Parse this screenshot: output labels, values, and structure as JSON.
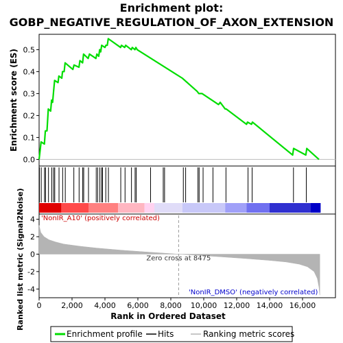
{
  "chart_data": {
    "type": "line",
    "title_lines": [
      "Enrichment plot:",
      "GOBP_NEGATIVE_REGULATION_OF_AXON_EXTENSION"
    ],
    "es_panel": {
      "ylabel": "Enrichment score (ES)",
      "ylim": [
        -0.03,
        0.57
      ],
      "yticks": [
        0.0,
        0.1,
        0.2,
        0.3,
        0.4,
        0.5
      ],
      "ytick_labels": [
        "0.0",
        "0.1",
        "0.2",
        "0.3",
        "0.4",
        "0.5"
      ],
      "line_color": "#00dd00",
      "points": [
        [
          0,
          0.0
        ],
        [
          120,
          0.08
        ],
        [
          320,
          0.07
        ],
        [
          380,
          0.13
        ],
        [
          480,
          0.13
        ],
        [
          560,
          0.23
        ],
        [
          700,
          0.22
        ],
        [
          760,
          0.27
        ],
        [
          820,
          0.26
        ],
        [
          880,
          0.31
        ],
        [
          940,
          0.36
        ],
        [
          1150,
          0.35
        ],
        [
          1200,
          0.38
        ],
        [
          1380,
          0.37
        ],
        [
          1420,
          0.4
        ],
        [
          1520,
          0.4
        ],
        [
          1580,
          0.44
        ],
        [
          2050,
          0.41
        ],
        [
          2120,
          0.43
        ],
        [
          2420,
          0.42
        ],
        [
          2480,
          0.45
        ],
        [
          2640,
          0.44
        ],
        [
          2700,
          0.48
        ],
        [
          2980,
          0.46
        ],
        [
          3060,
          0.48
        ],
        [
          3450,
          0.46
        ],
        [
          3510,
          0.48
        ],
        [
          3620,
          0.47
        ],
        [
          3680,
          0.5
        ],
        [
          3740,
          0.49
        ],
        [
          3800,
          0.52
        ],
        [
          4000,
          0.51
        ],
        [
          4060,
          0.52
        ],
        [
          4140,
          0.52
        ],
        [
          4200,
          0.55
        ],
        [
          4950,
          0.51
        ],
        [
          5000,
          0.52
        ],
        [
          5200,
          0.51
        ],
        [
          5260,
          0.52
        ],
        [
          5600,
          0.5
        ],
        [
          5660,
          0.51
        ],
        [
          5820,
          0.5
        ],
        [
          5880,
          0.51
        ],
        [
          5960,
          0.5
        ],
        [
          8700,
          0.37
        ],
        [
          9600,
          0.31
        ],
        [
          9700,
          0.3
        ],
        [
          9900,
          0.3
        ],
        [
          10900,
          0.25
        ],
        [
          11000,
          0.26
        ],
        [
          11300,
          0.23
        ],
        [
          11360,
          0.23
        ],
        [
          12600,
          0.16
        ],
        [
          12660,
          0.17
        ],
        [
          12900,
          0.16
        ],
        [
          12960,
          0.17
        ],
        [
          15400,
          0.02
        ],
        [
          15460,
          0.05
        ],
        [
          16200,
          0.02
        ],
        [
          16260,
          0.05
        ],
        [
          17000,
          0.0
        ]
      ]
    },
    "hits": [
      20,
      130,
      330,
      390,
      570,
      770,
      880,
      950,
      1210,
      1430,
      1590,
      2110,
      2430,
      2650,
      2710,
      3000,
      3470,
      3560,
      3690,
      3800,
      3850,
      4050,
      4210,
      4960,
      5220,
      5610,
      5830,
      5900,
      6770,
      7540,
      7620,
      8760,
      8900,
      9650,
      9720,
      9960,
      10560,
      11350,
      12690,
      12940,
      15450,
      16230
    ],
    "rank_panel": {
      "ylabel": "Ranked list metric (Signal2Noise)",
      "ylim": [
        -5.0,
        4.6
      ],
      "yticks": [
        4,
        2,
        0,
        -2,
        -4
      ],
      "ytick_labels": [
        "4",
        "2",
        "0",
        "-2",
        "-4"
      ],
      "fill_color": "#b4b4b4",
      "points": [
        [
          0,
          3.3
        ],
        [
          100,
          2.5
        ],
        [
          300,
          2.0
        ],
        [
          600,
          1.65
        ],
        [
          1000,
          1.4
        ],
        [
          1500,
          1.15
        ],
        [
          2500,
          0.9
        ],
        [
          3500,
          0.7
        ],
        [
          5000,
          0.45
        ],
        [
          6500,
          0.25
        ],
        [
          7500,
          0.12
        ],
        [
          8475,
          0.0
        ],
        [
          9500,
          -0.12
        ],
        [
          11000,
          -0.3
        ],
        [
          12500,
          -0.5
        ],
        [
          14000,
          -0.72
        ],
        [
          15000,
          -0.9
        ],
        [
          15800,
          -1.15
        ],
        [
          16300,
          -1.45
        ],
        [
          16700,
          -2.0
        ],
        [
          16900,
          -2.8
        ],
        [
          17000,
          -3.8
        ],
        [
          17050,
          -4.7
        ]
      ],
      "zero_cross": 8475,
      "zero_cross_label": "Zero cross at 8475",
      "pos_label": "'NonIR_A10' (positively correlated)",
      "neg_label": "'NonIR_DMSO' (negatively correlated)",
      "pos_label_color": "#cc0000",
      "neg_label_color": "#0000cc"
    },
    "heat_bar": {
      "colors": [
        "#e00000",
        "#ff4a4a",
        "#ff8080",
        "#ffb6c1",
        "#ffd2f0",
        "#e0dcf8",
        "#c8c8f8",
        "#a0a0f8",
        "#7070f0",
        "#3030d0",
        "#0000c8"
      ],
      "breaks": [
        0,
        1350,
        3000,
        4800,
        6400,
        7000,
        8700,
        11300,
        12600,
        14000,
        16500,
        17100
      ]
    },
    "xlabel": "Rank in Ordered Dataset",
    "xlim": [
      0,
      18000
    ],
    "xticks": [
      0,
      2000,
      4000,
      6000,
      8000,
      10000,
      12000,
      14000,
      16000
    ],
    "xtick_labels": [
      "0",
      "2,000",
      "4,000",
      "6,000",
      "8,000",
      "10,000",
      "12,000",
      "14,000",
      "16,000"
    ],
    "legend": [
      {
        "label": "Enrichment profile",
        "color": "#00dd00",
        "kind": "thick-line"
      },
      {
        "label": "Hits",
        "color": "#000000",
        "kind": "thin-line"
      },
      {
        "label": "Ranking metric scores",
        "color": "#b4b4b4",
        "kind": "thin-line"
      }
    ]
  }
}
